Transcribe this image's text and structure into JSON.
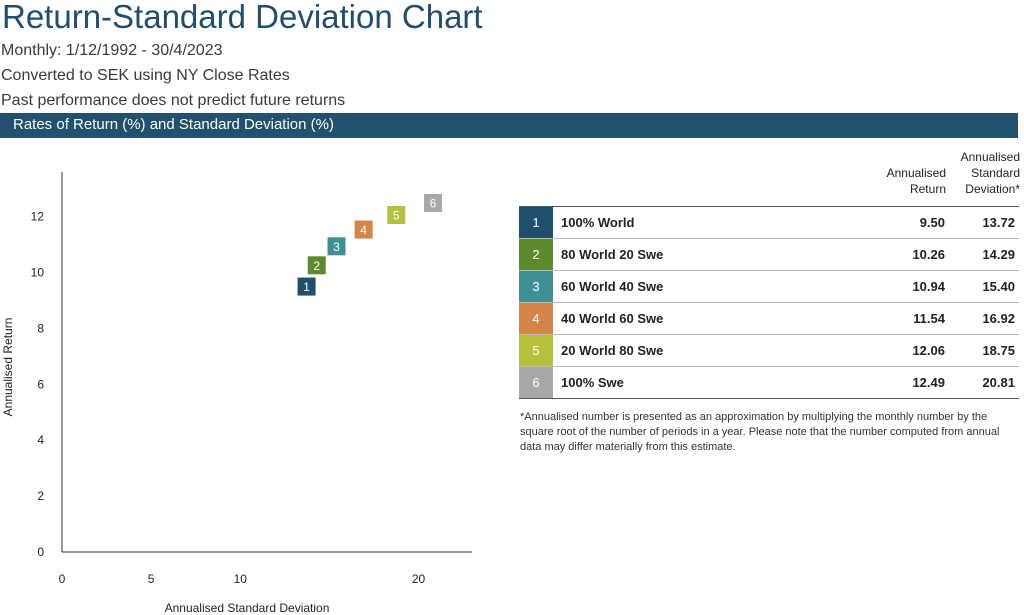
{
  "title": "Return-Standard Deviation Chart",
  "subtitles": [
    "Monthly: 1/12/1992 - 30/4/2023",
    "Converted to SEK using NY Close Rates",
    "Past performance does not predict future returns"
  ],
  "section_label": "Rates of Return (%) and Standard Deviation (%)",
  "table": {
    "header_return": "Annualised Return",
    "header_sd": "Annualised Standard Deviation*",
    "rows": [
      {
        "id": "1",
        "name": "100% World",
        "return": "9.50",
        "sd": "13.72",
        "color": "#1f4e6e"
      },
      {
        "id": "2",
        "name": "80 World 20 Swe",
        "return": "10.26",
        "sd": "14.29",
        "color": "#5e8a2c"
      },
      {
        "id": "3",
        "name": "60 World 40 Swe",
        "return": "10.94",
        "sd": "15.40",
        "color": "#3f8f97"
      },
      {
        "id": "4",
        "name": "40 World 60 Swe",
        "return": "11.54",
        "sd": "16.92",
        "color": "#d4864a"
      },
      {
        "id": "5",
        "name": "20 World 80 Swe",
        "return": "12.06",
        "sd": "18.75",
        "color": "#b4c13a"
      },
      {
        "id": "6",
        "name": "100% Swe",
        "return": "12.49",
        "sd": "20.81",
        "color": "#a8a8a8"
      }
    ]
  },
  "footnote": "*Annualised number is presented as an approximation by multiplying the monthly number by the square root of the number of periods in a year. Please note that the number computed from annual data may differ materially from this estimate.",
  "chart_data": {
    "type": "scatter",
    "xlabel": "Annualised Standard Deviation",
    "ylabel": "Annualised Return",
    "xlim": [
      0,
      23
    ],
    "ylim": [
      0,
      13.6
    ],
    "xticks": [
      0,
      5,
      10,
      20
    ],
    "yticks": [
      0,
      2,
      4,
      6,
      8,
      10,
      12
    ],
    "points": [
      {
        "label": "1",
        "x": 13.72,
        "y": 9.5,
        "color": "#1f4e6e"
      },
      {
        "label": "2",
        "x": 14.29,
        "y": 10.26,
        "color": "#5e8a2c"
      },
      {
        "label": "3",
        "x": 15.4,
        "y": 10.94,
        "color": "#3f8f97"
      },
      {
        "label": "4",
        "x": 16.92,
        "y": 11.54,
        "color": "#d4864a"
      },
      {
        "label": "5",
        "x": 18.75,
        "y": 12.06,
        "color": "#b4c13a"
      },
      {
        "label": "6",
        "x": 20.81,
        "y": 12.49,
        "color": "#a8a8a8"
      }
    ]
  }
}
